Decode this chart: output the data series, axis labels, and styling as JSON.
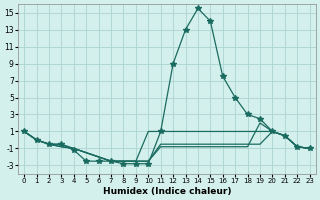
{
  "xlabel": "Humidex (Indice chaleur)",
  "ylabel": "",
  "background_color": "#d4f0ec",
  "grid_color": "#b0d8d4",
  "line_color": "#1a6b60",
  "xlim": [
    -0.5,
    23.5
  ],
  "ylim": [
    -4,
    16
  ],
  "yticks": [
    -3,
    -1,
    1,
    3,
    5,
    7,
    9,
    11,
    13,
    15
  ],
  "xticks": [
    0,
    1,
    2,
    3,
    4,
    5,
    6,
    7,
    8,
    9,
    10,
    11,
    12,
    13,
    14,
    15,
    16,
    17,
    18,
    19,
    20,
    21,
    22,
    23
  ],
  "series": [
    {
      "x": [
        0,
        1,
        2,
        3,
        4,
        5,
        6,
        7,
        8,
        9,
        10,
        11,
        12,
        13,
        14,
        15,
        16,
        17,
        18,
        19,
        20,
        21,
        22,
        23
      ],
      "y": [
        1,
        0,
        -0.5,
        -0.5,
        -1.2,
        -2.5,
        -2.5,
        -2.5,
        -2.8,
        -2.8,
        -2.8,
        1.0,
        9.0,
        13.0,
        15.5,
        14.0,
        7.5,
        5.0,
        3.0,
        2.5,
        1.0,
        0.5,
        -0.8,
        -1.0
      ],
      "marker": "*"
    },
    {
      "x": [
        0,
        1,
        2,
        3,
        4,
        5,
        6,
        7,
        8,
        9,
        10,
        11,
        12,
        13,
        14,
        15,
        16,
        17,
        18,
        19,
        20,
        21,
        22,
        23
      ],
      "y": [
        1,
        0,
        -0.5,
        -0.5,
        -1.0,
        -1.5,
        -2.0,
        -2.5,
        -2.5,
        -2.5,
        1.0,
        1.0,
        1.0,
        1.0,
        1.0,
        1.0,
        1.0,
        1.0,
        1.0,
        1.0,
        1.0,
        0.5,
        -0.8,
        -1.0
      ],
      "marker": null
    },
    {
      "x": [
        0,
        1,
        2,
        3,
        4,
        5,
        6,
        7,
        8,
        9,
        10,
        11,
        12,
        13,
        14,
        15,
        16,
        17,
        18,
        19,
        20,
        21,
        22,
        23
      ],
      "y": [
        1,
        0,
        -0.5,
        -0.8,
        -1.0,
        -1.5,
        -2.0,
        -2.5,
        -2.5,
        -2.5,
        -2.5,
        -0.5,
        -0.5,
        -0.5,
        -0.5,
        -0.5,
        -0.5,
        -0.5,
        -0.5,
        -0.5,
        1.0,
        0.5,
        -0.8,
        -1.0
      ],
      "marker": null
    },
    {
      "x": [
        0,
        1,
        2,
        3,
        4,
        5,
        6,
        7,
        8,
        9,
        10,
        11,
        12,
        13,
        14,
        15,
        16,
        17,
        18,
        19,
        20,
        21,
        22,
        23
      ],
      "y": [
        1,
        0,
        -0.5,
        -0.8,
        -1.0,
        -1.5,
        -2.0,
        -2.5,
        -2.5,
        -2.5,
        -2.5,
        -0.8,
        -0.8,
        -0.8,
        -0.8,
        -0.8,
        -0.8,
        -0.8,
        -0.8,
        2.0,
        1.0,
        0.5,
        -0.8,
        -1.0
      ],
      "marker": null
    }
  ]
}
